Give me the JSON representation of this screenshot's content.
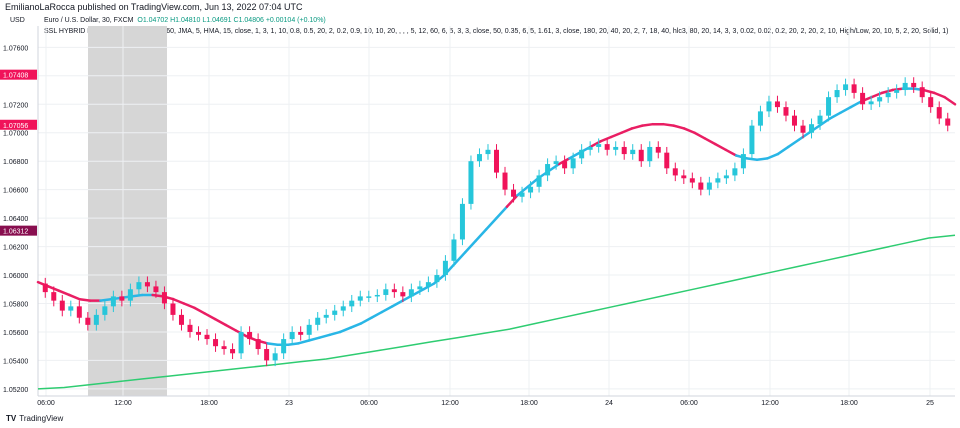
{
  "header": {
    "published": "EmilianoLaRocca published on TradingView.com, Jun 13, 2022 07:04 UTC"
  },
  "legend": {
    "symbol": "Euro / U.S. Dollar, 30, FXCM",
    "ohlc": "O1.04702 H1.04810 L1.04691 C1.04806 +0.00104 (+0.10%)",
    "indicator": "SSL HYBRID EMA (14, 1, WMA, HMA, 60, JMA, 5, HMA, 15, close, 1, 3, 1, 10, 0.8, 0.5, 20, 2, 0.2, 0.9, 10, 10, 20, , , , 5, 12, 60, 6, 5, 3, 3, close, 50, 0.35, 6, 5, 1.61, 3, close, 180, 20, 40, 20, 2, 7, 18, 40, hlc3, 80, 20, 14, 3, 3, 0.02, 0.02, 0.2, 20, 2, 20, 2, 10, High/Low, 20, 10, 5, 2, 20, Solid, 1)"
  },
  "currency": "USD",
  "footer": {
    "brand": "TradingView"
  },
  "colors": {
    "up": "#26c6da",
    "down": "#f0135a",
    "baseline_bear": "#e91e63",
    "baseline_bull": "#29b6e6",
    "ema200": "#2ecc71",
    "grid": "#eef0f3",
    "session_shade": "#d6d6d6"
  },
  "chart_data": {
    "type": "candlestick",
    "title": "Euro / U.S. Dollar, 30, FXCM",
    "ylim": [
      1.0515,
      1.0775
    ],
    "y_ticks": [
      1.052,
      1.054,
      1.056,
      1.058,
      1.06,
      1.062,
      1.064,
      1.066,
      1.068,
      1.07,
      1.072,
      1.074,
      1.076
    ],
    "y_tick_labels": [
      "1.05200",
      "1.05400",
      "1.05600",
      "1.05800",
      "1.06000",
      "1.06200",
      "1.06400",
      "1.06600",
      "1.06800",
      "1.07000",
      "1.07200",
      "1.07400",
      "1.07600"
    ],
    "x_tick_labels": [
      "06:00",
      "12:00",
      "18:00",
      "23",
      "06:00",
      "12:00",
      "18:00",
      "24",
      "06:00",
      "12:00",
      "18:00",
      "25"
    ],
    "price_labels": [
      {
        "value": 1.07408,
        "text": "1.07408",
        "color": "#f0135a"
      },
      {
        "value": 1.07056,
        "text": "1.07056",
        "color": "#f0135a"
      },
      {
        "value": 1.06312,
        "text": "1.06312",
        "color": "#880e4f"
      }
    ],
    "session_shade_x": [
      "06:00",
      "12:00"
    ],
    "closes": [
      1.0588,
      1.0582,
      1.0575,
      1.0578,
      1.057,
      1.0565,
      1.0572,
      1.0578,
      1.0585,
      1.0582,
      1.059,
      1.0595,
      1.0592,
      1.0588,
      1.058,
      1.0572,
      1.0565,
      1.056,
      1.0558,
      1.0555,
      1.055,
      1.0548,
      1.0545,
      1.056,
      1.0555,
      1.0548,
      1.054,
      1.0545,
      1.0555,
      1.056,
      1.0558,
      1.0565,
      1.057,
      1.0572,
      1.0575,
      1.0578,
      1.0582,
      1.0585,
      1.0585,
      1.0586,
      1.059,
      1.0588,
      1.0585,
      1.059,
      1.0592,
      1.0595,
      1.06,
      1.061,
      1.0625,
      1.065,
      1.068,
      1.0685,
      1.0688,
      1.0672,
      1.066,
      1.0655,
      1.0658,
      1.0662,
      1.067,
      1.0678,
      1.068,
      1.0675,
      1.0682,
      1.0688,
      1.069,
      1.0692,
      1.0688,
      1.069,
      1.0685,
      1.0688,
      1.068,
      1.069,
      1.0686,
      1.0675,
      1.067,
      1.0668,
      1.0665,
      1.066,
      1.0665,
      1.0668,
      1.067,
      1.0675,
      1.0685,
      1.0705,
      1.0715,
      1.0722,
      1.0718,
      1.0712,
      1.0705,
      1.07,
      1.0706,
      1.0712,
      1.0725,
      1.073,
      1.0734,
      1.0728,
      1.072,
      1.0722,
      1.0725,
      1.0728,
      1.073,
      1.0735,
      1.0732,
      1.0725,
      1.0718,
      1.071,
      1.0705
    ],
    "baseline": [
      1.0595,
      1.0592,
      1.0589,
      1.0586,
      1.0583,
      1.0582,
      1.0582,
      1.0583,
      1.0584,
      1.0585,
      1.0586,
      1.0586,
      1.0585,
      1.0583,
      1.058,
      1.0577,
      1.0573,
      1.0569,
      1.0565,
      1.0561,
      1.0557,
      1.0554,
      1.0552,
      1.0551,
      1.0551,
      1.0552,
      1.0554,
      1.0556,
      1.0558,
      1.056,
      1.0563,
      1.0566,
      1.057,
      1.0574,
      1.0578,
      1.0582,
      1.0586,
      1.059,
      1.0594,
      1.06,
      1.0608,
      1.0616,
      1.0624,
      1.0632,
      1.064,
      1.0648,
      1.0656,
      1.0662,
      1.0668,
      1.0673,
      1.0678,
      1.0682,
      1.0686,
      1.069,
      1.0694,
      1.0697,
      1.07,
      1.0703,
      1.0705,
      1.0706,
      1.0706,
      1.0705,
      1.0703,
      1.07,
      1.0696,
      1.0692,
      1.0688,
      1.0684,
      1.0682,
      1.0681,
      1.0682,
      1.0685,
      1.069,
      1.0695,
      1.07,
      1.0705,
      1.071,
      1.0714,
      1.0718,
      1.0722,
      1.0725,
      1.0728,
      1.073,
      1.0731,
      1.0731,
      1.073,
      1.0728,
      1.0725,
      1.072
    ],
    "ema200": [
      1.052,
      1.0521,
      1.0523,
      1.0525,
      1.0527,
      1.0529,
      1.0531,
      1.0533,
      1.0535,
      1.0537,
      1.0539,
      1.0541,
      1.0544,
      1.0547,
      1.055,
      1.0553,
      1.0556,
      1.0559,
      1.0562,
      1.0566,
      1.057,
      1.0574,
      1.0578,
      1.0582,
      1.0586,
      1.059,
      1.0594,
      1.0598,
      1.0602,
      1.0606,
      1.061,
      1.0614,
      1.0618,
      1.0622,
      1.0626,
      1.0628
    ]
  }
}
